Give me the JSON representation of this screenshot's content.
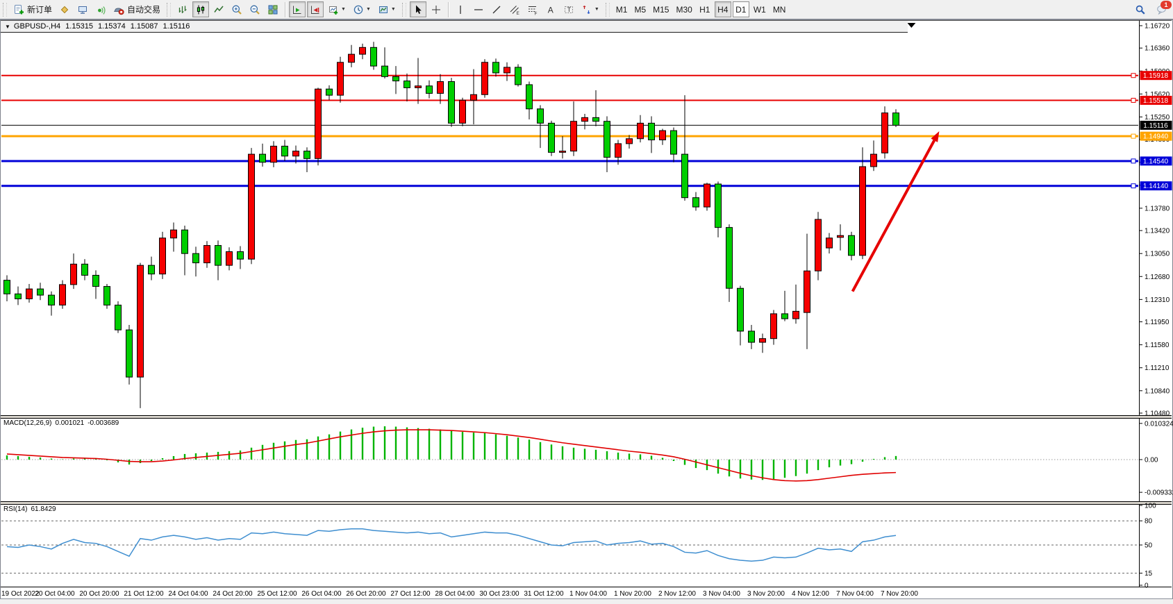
{
  "toolbar": {
    "new_order_label": "新订单",
    "auto_trading_label": "自动交易",
    "timeframes": [
      "M1",
      "M5",
      "M15",
      "M30",
      "H1",
      "H4",
      "D1",
      "W1",
      "MN"
    ],
    "active_timeframe": "H4",
    "focused_timeframe": "D1",
    "notification_count": "1"
  },
  "chart_header": {
    "symbol": "GBPUSD-,H4",
    "open": "1.15315",
    "high": "1.15374",
    "low": "1.15087",
    "close": "1.15116"
  },
  "chart_data": {
    "type": "candlestick",
    "symbol": "GBPUSD",
    "timeframe": "H4",
    "bull_color": "#f60000",
    "bear_color": "#00ce00",
    "wick_color": "#000000",
    "price_axis_ticks": [
      "1.16720",
      "1.16360",
      "1.15990",
      "1.15620",
      "1.15250",
      "1.14890",
      "1.14520",
      "1.14150",
      "1.13780",
      "1.13420",
      "1.13050",
      "1.12680",
      "1.12310",
      "1.11950",
      "1.11580",
      "1.11210",
      "1.10840",
      "1.10480"
    ],
    "x_labels": [
      {
        "i": 0,
        "t": "19 Oct 2022"
      },
      {
        "i": 4,
        "t": "20 Oct 04:00"
      },
      {
        "i": 8,
        "t": "20 Oct 20:00"
      },
      {
        "i": 12,
        "t": "21 Oct 12:00"
      },
      {
        "i": 16,
        "t": "24 Oct 04:00"
      },
      {
        "i": 20,
        "t": "24 Oct 20:00"
      },
      {
        "i": 24,
        "t": "25 Oct 12:00"
      },
      {
        "i": 28,
        "t": "26 Oct 04:00"
      },
      {
        "i": 32,
        "t": "26 Oct 20:00"
      },
      {
        "i": 36,
        "t": "27 Oct 12:00"
      },
      {
        "i": 40,
        "t": "28 Oct 04:00"
      },
      {
        "i": 44,
        "t": "30 Oct 23:00"
      },
      {
        "i": 48,
        "t": "31 Oct 12:00"
      },
      {
        "i": 52,
        "t": "1 Nov 04:00"
      },
      {
        "i": 56,
        "t": "1 Nov 20:00"
      },
      {
        "i": 60,
        "t": "2 Nov 12:00"
      },
      {
        "i": 64,
        "t": "3 Nov 04:00"
      },
      {
        "i": 68,
        "t": "3 Nov 20:00"
      },
      {
        "i": 72,
        "t": "4 Nov 12:00"
      },
      {
        "i": 76,
        "t": "7 Nov 04:00"
      },
      {
        "i": 80,
        "t": "7 Nov 20:00"
      }
    ],
    "candles": [
      [
        1.1262,
        1.127,
        1.1228,
        1.124
      ],
      [
        1.124,
        1.1252,
        1.1222,
        1.1232
      ],
      [
        1.1232,
        1.1256,
        1.1226,
        1.1248
      ],
      [
        1.1248,
        1.1258,
        1.123,
        1.1238
      ],
      [
        1.1238,
        1.1244,
        1.1205,
        1.1222
      ],
      [
        1.1222,
        1.1262,
        1.1216,
        1.1255
      ],
      [
        1.1255,
        1.1305,
        1.1248,
        1.1288
      ],
      [
        1.1288,
        1.1296,
        1.1262,
        1.127
      ],
      [
        1.127,
        1.1278,
        1.1232,
        1.1252
      ],
      [
        1.1252,
        1.1256,
        1.1216,
        1.1222
      ],
      [
        1.1222,
        1.1228,
        1.1177,
        1.1182
      ],
      [
        1.1182,
        1.119,
        1.1094,
        1.1106
      ],
      [
        1.1106,
        1.129,
        1.1056,
        1.1286
      ],
      [
        1.1286,
        1.13,
        1.1262,
        1.1272
      ],
      [
        1.1272,
        1.134,
        1.1264,
        1.133
      ],
      [
        1.133,
        1.1355,
        1.1308,
        1.1343
      ],
      [
        1.1343,
        1.135,
        1.127,
        1.1305
      ],
      [
        1.1305,
        1.1316,
        1.1268,
        1.129
      ],
      [
        1.129,
        1.1325,
        1.1282,
        1.1318
      ],
      [
        1.1318,
        1.1326,
        1.1262,
        1.1286
      ],
      [
        1.1286,
        1.1315,
        1.1278,
        1.1308
      ],
      [
        1.1308,
        1.1317,
        1.128,
        1.1296
      ],
      [
        1.1296,
        1.1475,
        1.1288,
        1.1465
      ],
      [
        1.1465,
        1.1482,
        1.1445,
        1.1452
      ],
      [
        1.1452,
        1.1486,
        1.1444,
        1.1478
      ],
      [
        1.1478,
        1.1488,
        1.1454,
        1.1462
      ],
      [
        1.1462,
        1.1479,
        1.145,
        1.147
      ],
      [
        1.147,
        1.1476,
        1.1436,
        1.1458
      ],
      [
        1.1458,
        1.1572,
        1.1447,
        1.157
      ],
      [
        1.157,
        1.1576,
        1.1552,
        1.156
      ],
      [
        1.156,
        1.1622,
        1.1548,
        1.1613
      ],
      [
        1.1613,
        1.1641,
        1.1605,
        1.1626
      ],
      [
        1.1626,
        1.1643,
        1.1618,
        1.1637
      ],
      [
        1.1637,
        1.1646,
        1.1601,
        1.1607
      ],
      [
        1.1607,
        1.1637,
        1.1587,
        1.159
      ],
      [
        1.159,
        1.1607,
        1.1562,
        1.1583
      ],
      [
        1.1583,
        1.1595,
        1.155,
        1.1572
      ],
      [
        1.1572,
        1.162,
        1.1546,
        1.1575
      ],
      [
        1.1575,
        1.1584,
        1.1555,
        1.1563
      ],
      [
        1.1563,
        1.1594,
        1.1546,
        1.1582
      ],
      [
        1.1582,
        1.1588,
        1.1509,
        1.1515
      ],
      [
        1.1515,
        1.1556,
        1.151,
        1.1552
      ],
      [
        1.1552,
        1.1602,
        1.1513,
        1.1561
      ],
      [
        1.1561,
        1.1618,
        1.1556,
        1.1613
      ],
      [
        1.1613,
        1.1619,
        1.159,
        1.1596
      ],
      [
        1.1596,
        1.1613,
        1.1583,
        1.1605
      ],
      [
        1.1605,
        1.161,
        1.1574,
        1.1577
      ],
      [
        1.1577,
        1.1582,
        1.1521,
        1.1538
      ],
      [
        1.1538,
        1.1544,
        1.1475,
        1.1515
      ],
      [
        1.1515,
        1.1519,
        1.1462,
        1.1468
      ],
      [
        1.1468,
        1.1494,
        1.1458,
        1.147
      ],
      [
        1.147,
        1.155,
        1.1462,
        1.1518
      ],
      [
        1.1518,
        1.153,
        1.1505,
        1.1524
      ],
      [
        1.1524,
        1.1568,
        1.151,
        1.1518
      ],
      [
        1.1518,
        1.1526,
        1.1436,
        1.146
      ],
      [
        1.146,
        1.1488,
        1.1448,
        1.1482
      ],
      [
        1.1482,
        1.1496,
        1.1474,
        1.149
      ],
      [
        1.149,
        1.1528,
        1.1484,
        1.1515
      ],
      [
        1.1515,
        1.1526,
        1.1467,
        1.1488
      ],
      [
        1.1488,
        1.1506,
        1.148,
        1.1503
      ],
      [
        1.1503,
        1.1508,
        1.1452,
        1.1465
      ],
      [
        1.1465,
        1.156,
        1.139,
        1.1395
      ],
      [
        1.1395,
        1.1404,
        1.1374,
        1.138
      ],
      [
        1.138,
        1.1419,
        1.1374,
        1.1417
      ],
      [
        1.1417,
        1.1421,
        1.1331,
        1.1347
      ],
      [
        1.1347,
        1.1352,
        1.1227,
        1.1249
      ],
      [
        1.1249,
        1.1253,
        1.1157,
        1.118
      ],
      [
        1.118,
        1.119,
        1.1151,
        1.1162
      ],
      [
        1.1162,
        1.1176,
        1.1145,
        1.1168
      ],
      [
        1.1168,
        1.1214,
        1.1158,
        1.1208
      ],
      [
        1.1208,
        1.1245,
        1.1196,
        1.12
      ],
      [
        1.12,
        1.1255,
        1.1192,
        1.1212
      ],
      [
        1.121,
        1.1337,
        1.1151,
        1.1277
      ],
      [
        1.1277,
        1.1372,
        1.1262,
        1.136
      ],
      [
        1.1314,
        1.1338,
        1.1305,
        1.133
      ],
      [
        1.1331,
        1.1352,
        1.131,
        1.1334
      ],
      [
        1.1334,
        1.134,
        1.1294,
        1.1302
      ],
      [
        1.1302,
        1.1476,
        1.1296,
        1.1445
      ],
      [
        1.1445,
        1.1487,
        1.1438,
        1.1465
      ],
      [
        1.1467,
        1.1542,
        1.1458,
        1.15315
      ],
      [
        1.15315,
        1.15374,
        1.15087,
        1.15116
      ]
    ],
    "hlines": [
      {
        "price": 1.15918,
        "label": "1.15918",
        "color": "#e80000",
        "width": 2,
        "marker": true
      },
      {
        "price": 1.15518,
        "label": "1.15518",
        "color": "#e80000",
        "width": 2,
        "marker": true
      },
      {
        "price": 1.15116,
        "label": "1.15116",
        "color": "#000000",
        "width": 1,
        "marker": false
      },
      {
        "price": 1.1494,
        "label": "1.14940",
        "color": "#ffa400",
        "width": 3,
        "marker": true
      },
      {
        "price": 1.1454,
        "label": "1.14540",
        "color": "#0000d8",
        "width": 3,
        "marker": true
      },
      {
        "price": 1.1414,
        "label": "1.14140",
        "color": "#0000d8",
        "width": 3,
        "marker": true
      }
    ],
    "arrow": {
      "color": "#e60000",
      "from": {
        "i": 76.1,
        "price": 1.1244
      },
      "to": {
        "i": 83.9,
        "price": 1.1502
      }
    },
    "shift_marker_i": 81.4,
    "macd": {
      "name": "MACD(12,26,9)",
      "value": "0.001021",
      "signal": "-0.003689",
      "axis_ticks": [
        {
          "v": 0.010324,
          "t": "0.010324"
        },
        {
          "v": 0,
          "t": "0.00"
        },
        {
          "v": -0.009332,
          "t": "-0.009332"
        }
      ],
      "histogram_color": "#00b400",
      "signal_color": "#e00000",
      "histogram": [
        0.0012,
        0.001,
        0.0008,
        0.0006,
        0.0003,
        0.0001,
        0.0003,
        0.0004,
        0.0002,
        -0.0002,
        -0.0008,
        -0.0014,
        -0.001,
        -0.0004,
        0.0004,
        0.001,
        0.0016,
        0.0018,
        0.002,
        0.0022,
        0.0024,
        0.0026,
        0.0034,
        0.0042,
        0.0048,
        0.0052,
        0.0056,
        0.0058,
        0.0066,
        0.0072,
        0.008,
        0.0086,
        0.0091,
        0.0094,
        0.0095,
        0.0094,
        0.0092,
        0.009,
        0.0088,
        0.0086,
        0.0082,
        0.0079,
        0.0077,
        0.0076,
        0.0072,
        0.0068,
        0.0063,
        0.0057,
        0.005,
        0.0043,
        0.0038,
        0.0034,
        0.0031,
        0.0028,
        0.0024,
        0.002,
        0.0017,
        0.0015,
        0.0011,
        0.0005,
        -0.0004,
        -0.0015,
        -0.0024,
        -0.003,
        -0.004,
        -0.0048,
        -0.0054,
        -0.0057,
        -0.0058,
        -0.0056,
        -0.0052,
        -0.0047,
        -0.004,
        -0.003,
        -0.0022,
        -0.0017,
        -0.0013,
        -0.0006,
        0.0002,
        0.0007,
        0.001021
      ],
      "signal_line": [
        0.0016,
        0.0014,
        0.0012,
        0.001,
        0.0008,
        0.0006,
        0.0005,
        0.0004,
        0.0003,
        0.0001,
        -0.0002,
        -0.0005,
        -0.0006,
        -0.0006,
        -0.0004,
        -0.0001,
        0.0003,
        0.0006,
        0.0009,
        0.0012,
        0.0015,
        0.0018,
        0.0023,
        0.0028,
        0.0033,
        0.0038,
        0.0043,
        0.0047,
        0.0053,
        0.0059,
        0.0065,
        0.007,
        0.0075,
        0.0079,
        0.0082,
        0.0084,
        0.0085,
        0.0085,
        0.0085,
        0.0084,
        0.0083,
        0.0081,
        0.0079,
        0.0077,
        0.0074,
        0.0071,
        0.0067,
        0.0063,
        0.0058,
        0.0053,
        0.0048,
        0.0044,
        0.004,
        0.0036,
        0.0032,
        0.0028,
        0.0024,
        0.0021,
        0.0017,
        0.0013,
        0.0008,
        0.0001,
        -0.0007,
        -0.0015,
        -0.0023,
        -0.0031,
        -0.0039,
        -0.0046,
        -0.0052,
        -0.0057,
        -0.006,
        -0.0061,
        -0.006,
        -0.0057,
        -0.0053,
        -0.0049,
        -0.0045,
        -0.0042,
        -0.004,
        -0.0038,
        -0.003689
      ]
    },
    "rsi": {
      "name": "RSI(14)",
      "value": "61.8429",
      "line_color": "#3e8ed0",
      "axis_ticks": [
        {
          "v": 100,
          "t": "100"
        },
        {
          "v": 80,
          "t": "80"
        },
        {
          "v": 50,
          "t": "50"
        },
        {
          "v": 15,
          "t": "15"
        },
        {
          "v": 0,
          "t": "0"
        }
      ],
      "levels": [
        80,
        50,
        15
      ],
      "values": [
        48,
        47,
        50,
        48,
        45,
        52,
        57,
        53,
        52,
        48,
        42,
        36,
        58,
        56,
        60,
        62,
        60,
        57,
        59,
        56,
        58,
        57,
        65,
        64,
        66,
        64,
        63,
        62,
        68,
        67,
        69,
        70,
        70,
        68,
        67,
        66,
        65,
        66,
        64,
        65,
        60,
        62,
        64,
        66,
        65,
        65,
        62,
        58,
        54,
        50,
        49,
        53,
        54,
        55,
        50,
        52,
        53,
        55,
        51,
        52,
        48,
        41,
        40,
        43,
        37,
        33,
        31,
        30,
        31,
        35,
        34,
        35,
        40,
        46,
        44,
        45,
        42,
        54,
        56,
        60,
        61.84
      ]
    }
  }
}
